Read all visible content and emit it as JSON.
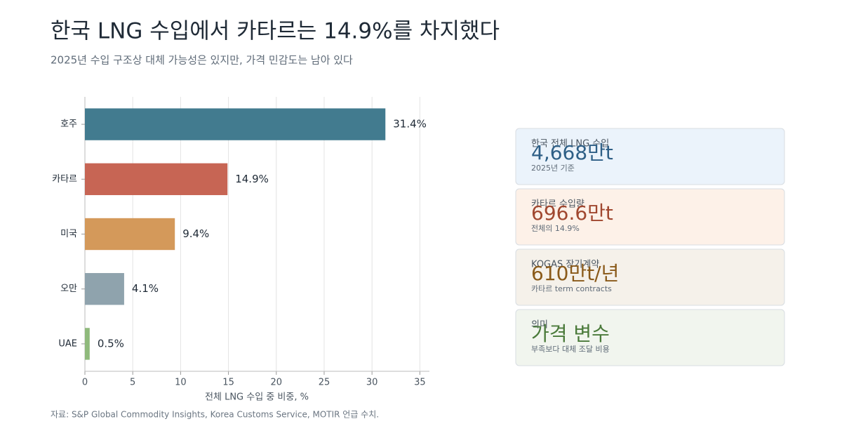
{
  "chart_data": {
    "type": "bar",
    "orientation": "horizontal",
    "title": "한국 LNG 수입에서 카타르는 14.9%를 차지했다",
    "subtitle": "2025년 수입 구조상 대체 가능성은 있지만, 가격 민감도는 남아 있다",
    "categories": [
      "호주",
      "카타르",
      "미국",
      "오만",
      "UAE"
    ],
    "values": [
      31.4,
      14.9,
      9.4,
      4.1,
      0.5
    ],
    "value_labels": [
      "31.4%",
      "14.9%",
      "9.4%",
      "4.1%",
      "0.5%"
    ],
    "colors": [
      "#427b8f",
      "#c76554",
      "#d4995a",
      "#8fa3ad",
      "#8fba7c"
    ],
    "xlim": [
      0,
      36
    ],
    "xticks": [
      0,
      5,
      10,
      15,
      20,
      25,
      30,
      35
    ],
    "grid": true,
    "xlabel": "전체 LNG 수입 중 비중, %",
    "source": "자료: S&P Global Commodity Insights, Korea Customs Service, MOTIR 언급 수치."
  },
  "cards": [
    {
      "label": "한국 전체 LNG 수입",
      "value": "4,668만t",
      "note": "2025년 기준",
      "color": "#2e5f86",
      "background": "#ebf3fb"
    },
    {
      "label": "카타르 수입량",
      "value": "696.6만t",
      "note": "전체의 14.9%",
      "color": "#a0472f",
      "background": "#fdf1e8"
    },
    {
      "label": "KOGAS 장기계약",
      "value": "610만t/년",
      "note": "카타르 term contracts",
      "color": "#8a5a1a",
      "background": "#f5f1ea"
    },
    {
      "label": "의미",
      "value": "가격 변수",
      "note": "부족보다 대체 조달 비용",
      "color": "#4a7a3a",
      "background": "#f1f5ee"
    }
  ]
}
